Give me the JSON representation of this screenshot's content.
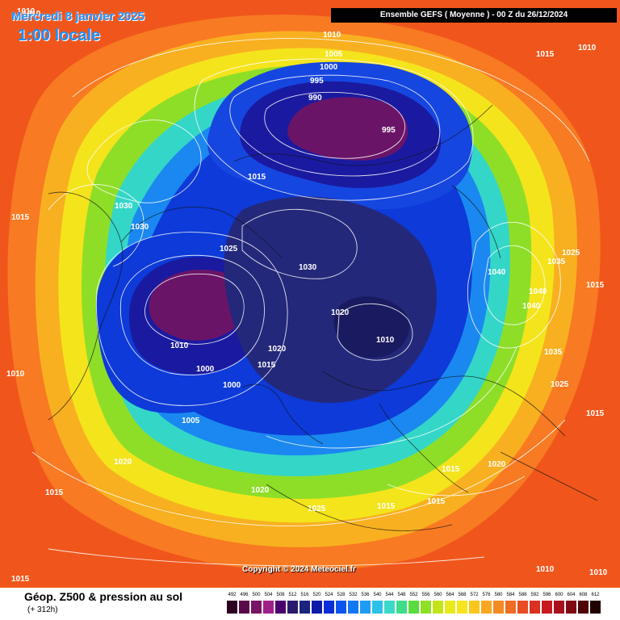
{
  "header": {
    "date_line": "Mercredi 8 janvier 2025",
    "local_time": "1:00 locale",
    "run_info": "Ensemble GEFS  ( Moyenne )  -  00 Z du 26/12/2024"
  },
  "map": {
    "copyright": "Copyright © 2024 Meteociel.fr",
    "pressure_labels": [
      "1010",
      "1010",
      "1005",
      "1000",
      "995",
      "990",
      "995",
      "1015",
      "1010",
      "1015",
      "1030",
      "1030",
      "1025",
      "1030",
      "1020",
      "1010",
      "1020",
      "1015",
      "1010",
      "1000",
      "1000",
      "1005",
      "1015",
      "1010",
      "1020",
      "1015",
      "1020",
      "1025",
      "1015",
      "1015",
      "1015",
      "1020",
      "1040",
      "1040",
      "1040",
      "1035",
      "1035",
      "1025",
      "1015",
      "1025",
      "1015",
      "1015",
      "1010",
      "1010",
      "1010"
    ]
  },
  "footer": {
    "variable_title": "Géop. Z500 & pression au sol",
    "lead_time": "(+ 312h)",
    "scale_values": [
      "492",
      "496",
      "500",
      "504",
      "508",
      "512",
      "516",
      "520",
      "524",
      "528",
      "532",
      "536",
      "540",
      "544",
      "548",
      "552",
      "556",
      "560",
      "564",
      "568",
      "572",
      "576",
      "580",
      "584",
      "588",
      "592",
      "596",
      "600",
      "604",
      "608",
      "612"
    ],
    "scale_colors": [
      "#2b0020",
      "#5a0a4a",
      "#7a1466",
      "#a0208a",
      "#4b0070",
      "#2a1a6e",
      "#1a237e",
      "#0d1aa8",
      "#0b2ed8",
      "#0b55ee",
      "#1277f2",
      "#1e9cf5",
      "#2cc1e8",
      "#3ad9c8",
      "#3fdc8c",
      "#5adc3c",
      "#8ee024",
      "#c4e41a",
      "#e8ea1a",
      "#f8e41c",
      "#fac61e",
      "#f8a820",
      "#f48a22",
      "#ef6c22",
      "#e84c22",
      "#dc3020",
      "#c81a1e",
      "#a8101c",
      "#800a14",
      "#500408",
      "#200000"
    ]
  }
}
